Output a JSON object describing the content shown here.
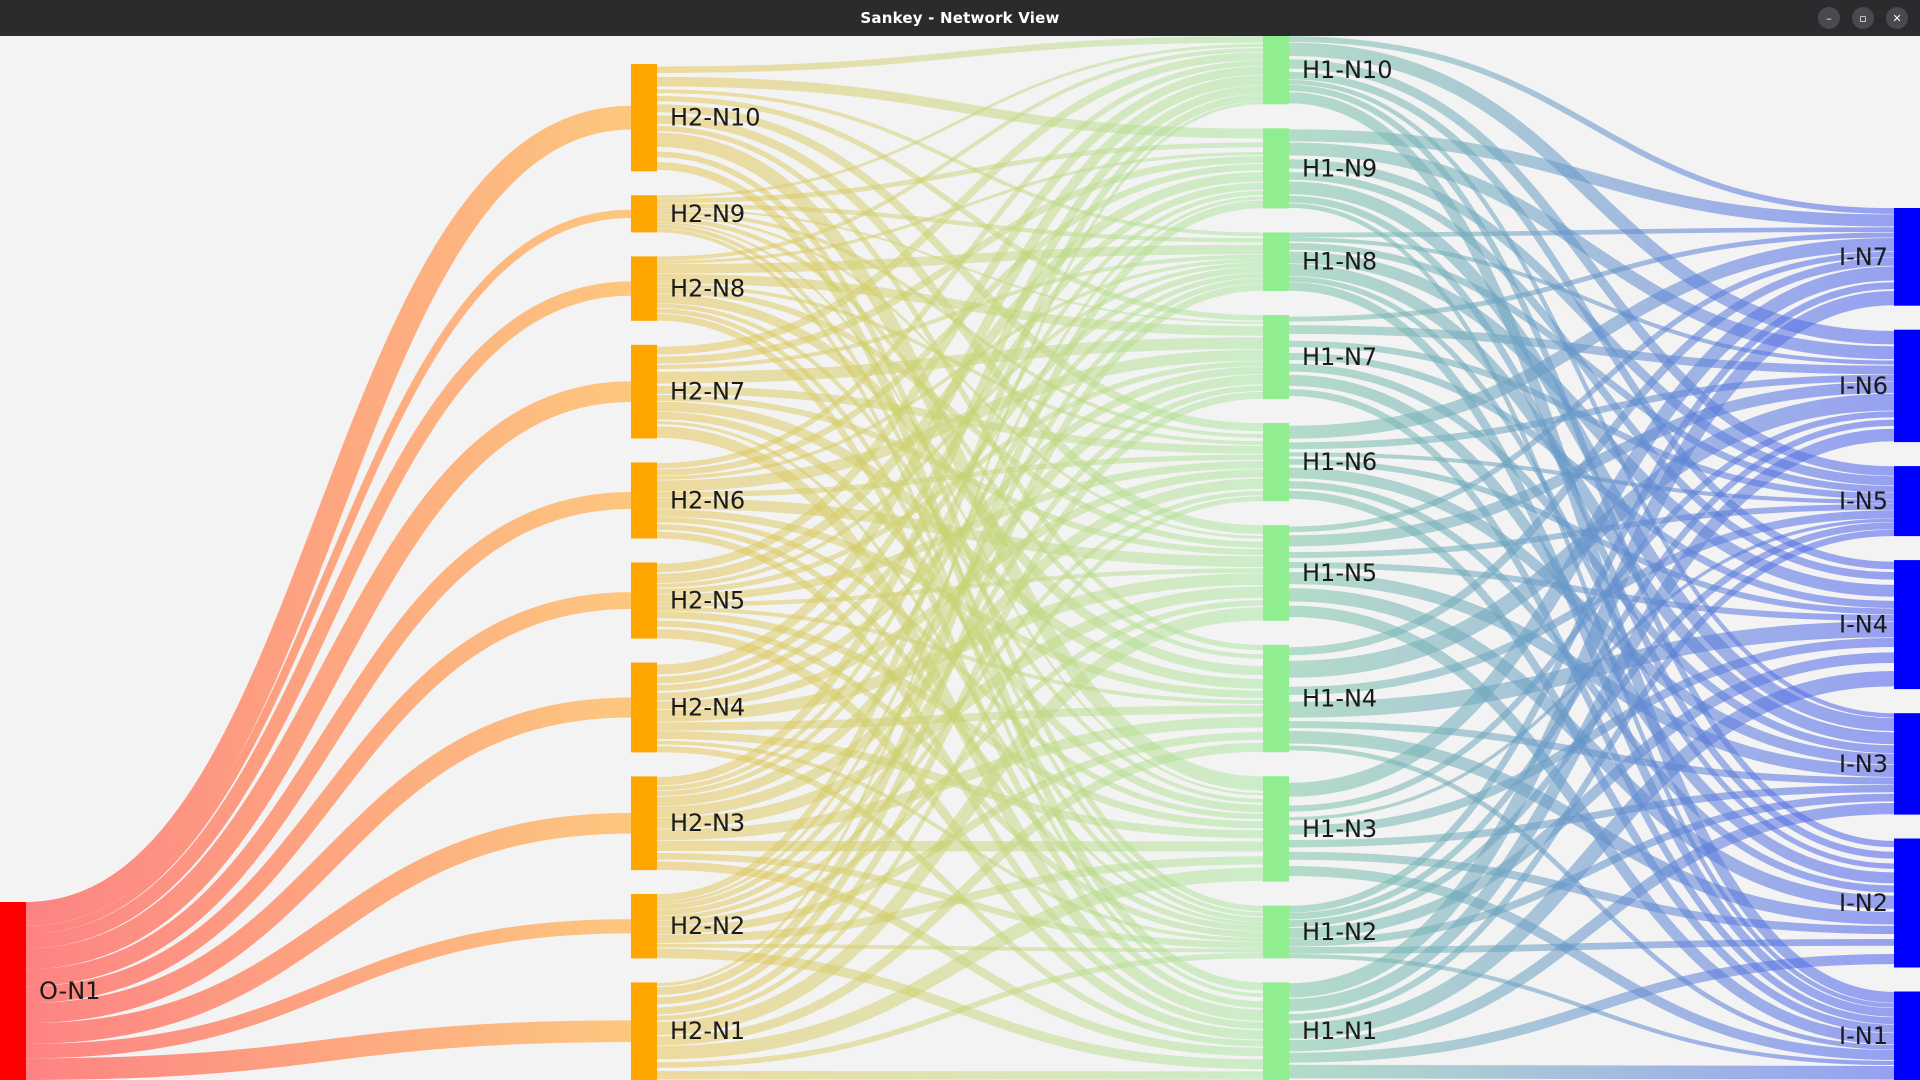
{
  "window": {
    "title": "Sankey - Network View",
    "controls": {
      "minimize": "–",
      "maximize": "▫",
      "close": "✕"
    }
  },
  "diagram": {
    "type": "sankey",
    "columns": [
      {
        "id": "output",
        "color": "#ff0000",
        "nodes": [
          "O-N1"
        ]
      },
      {
        "id": "hidden2",
        "color": "#ffa500",
        "nodes": [
          "H2-N10",
          "H2-N9",
          "H2-N8",
          "H2-N7",
          "H2-N6",
          "H2-N5",
          "H2-N4",
          "H2-N3",
          "H2-N2",
          "H2-N1"
        ],
        "weights": [
          5.5,
          1.9,
          3.3,
          4.8,
          3.9,
          3.9,
          4.6,
          4.8,
          3.3,
          5.0
        ]
      },
      {
        "id": "hidden1",
        "color": "#90ee90",
        "nodes": [
          "H1-N10",
          "H1-N9",
          "H1-N8",
          "H1-N7",
          "H1-N6",
          "H1-N5",
          "H1-N4",
          "H1-N3",
          "H1-N2",
          "H1-N1"
        ],
        "weights": [
          3.5,
          4.1,
          3.0,
          4.3,
          4.0,
          4.9,
          5.5,
          5.4,
          2.7,
          5.0
        ]
      },
      {
        "id": "input",
        "color": "#0000ff",
        "nodes": [
          "I-N7",
          "I-N6",
          "I-N5",
          "I-N4",
          "I-N3",
          "I-N2",
          "I-N1"
        ],
        "weights": [
          5.3,
          6.1,
          3.8,
          7.0,
          5.5,
          7.0,
          4.8
        ]
      }
    ],
    "link_colors": {
      "output_to_hidden2": [
        "#ff6f6f",
        "#ffc06a"
      ],
      "hidden2_to_hidden1": [
        "#e8c04a",
        "#a6e6a0"
      ],
      "hidden1_to_input": [
        "#7ec9a5",
        "#4a5cf0"
      ]
    }
  }
}
